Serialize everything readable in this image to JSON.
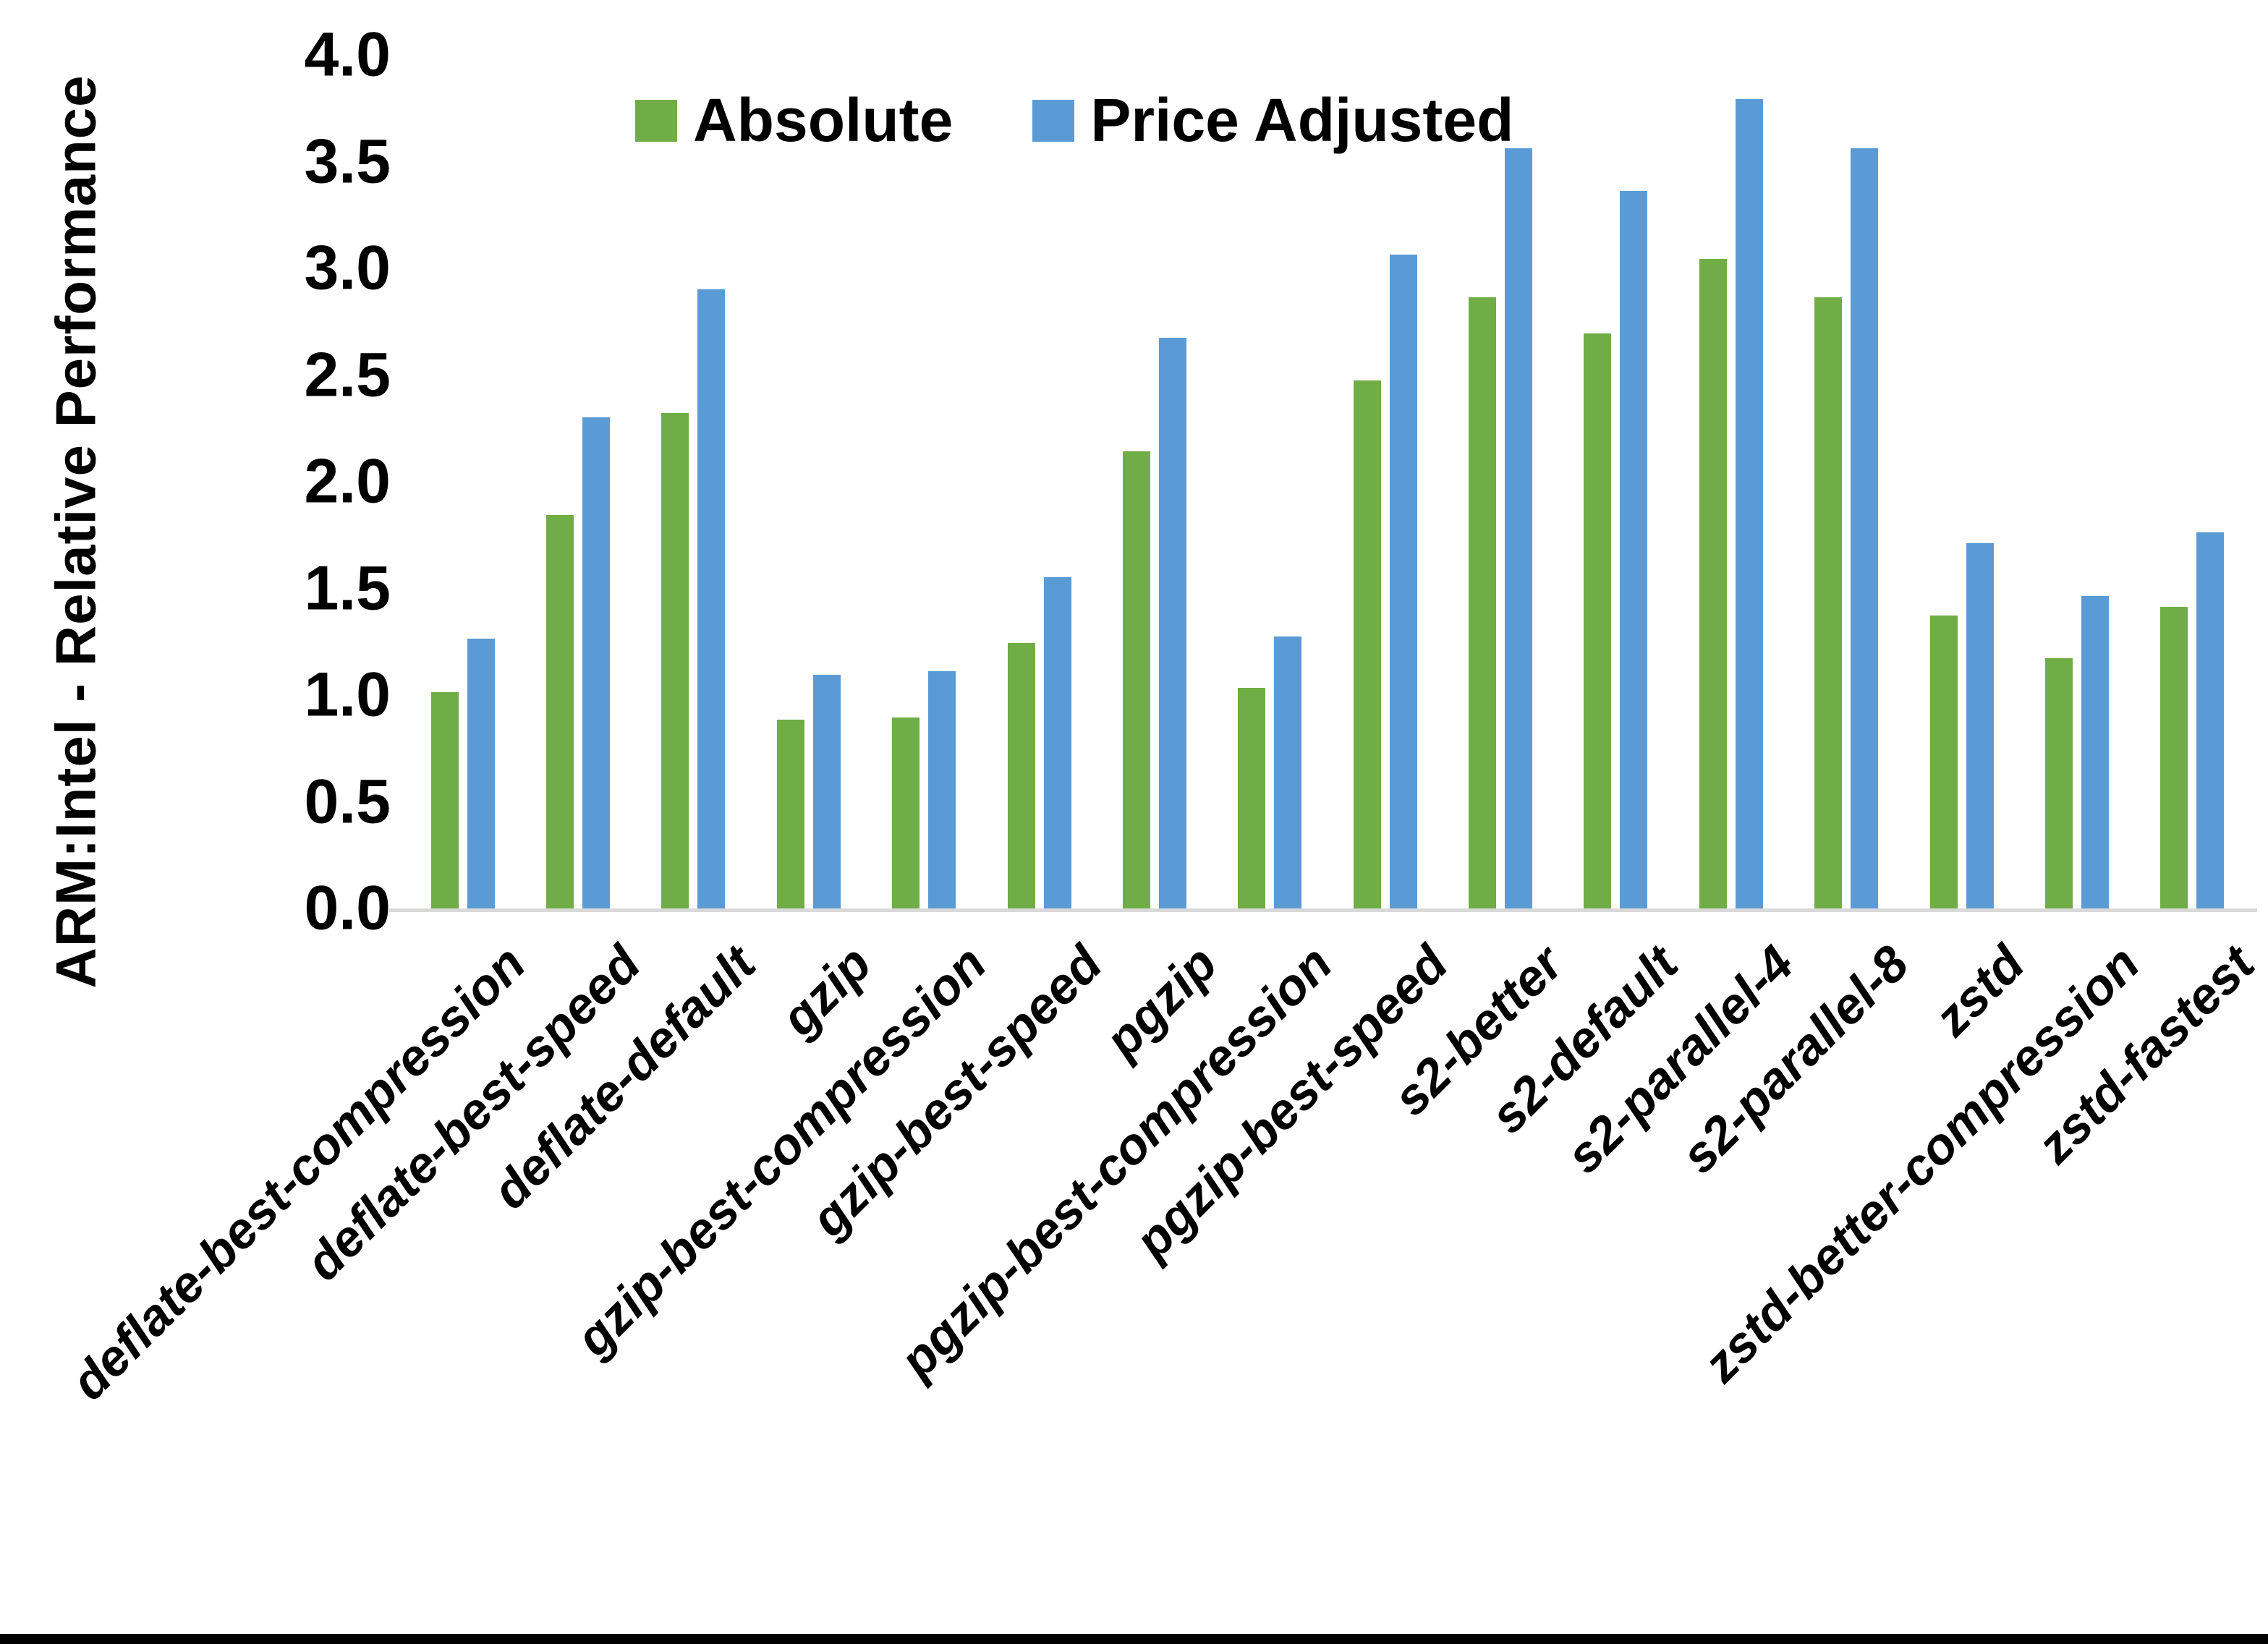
{
  "figure": {
    "background_color": "#FFFFFF",
    "baseline_color": "#D9D9D9",
    "bottom_border_color": "#000000",
    "text_color": "#000000"
  },
  "chart_data": {
    "type": "bar",
    "title": "",
    "xlabel": "",
    "ylabel": "ARM:Intel - Relative Performance",
    "ylim": [
      0.0,
      4.0
    ],
    "ytick_step": 0.5,
    "ytick_labels": [
      "0.0",
      "0.5",
      "1.0",
      "1.5",
      "2.0",
      "2.5",
      "3.0",
      "3.5",
      "4.0"
    ],
    "grid": false,
    "legend_position": "top-center",
    "categories": [
      "deflate-best-compression",
      "deflate-best-speed",
      "deflate-default",
      "gzip",
      "gzip-best-compression",
      "gzip-best-speed",
      "pgzip",
      "pgzip-best-compression",
      "pgzip-best-speed",
      "s2-better",
      "s2-default",
      "s2-parallel-4",
      "s2-parallel-8",
      "zstd",
      "zstd-better-compression",
      "zstd-fastest"
    ],
    "series": [
      {
        "name": "Absolute",
        "color": "#70AD47",
        "values": [
          1.02,
          1.85,
          2.33,
          0.89,
          0.9,
          1.25,
          2.15,
          1.04,
          2.48,
          2.87,
          2.7,
          3.05,
          2.87,
          1.38,
          1.18,
          1.42
        ]
      },
      {
        "name": "Price Adjusted",
        "color": "#5B9BD5",
        "values": [
          1.27,
          2.31,
          2.91,
          1.1,
          1.12,
          1.56,
          2.68,
          1.28,
          3.07,
          3.57,
          3.37,
          3.8,
          3.57,
          1.72,
          1.47,
          1.77
        ]
      }
    ]
  }
}
